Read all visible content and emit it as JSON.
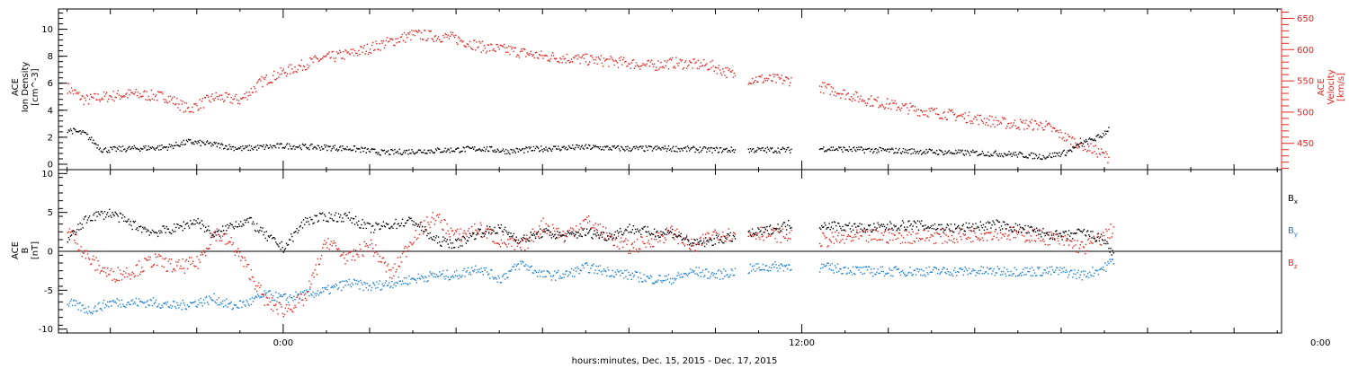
{
  "colors": {
    "black": "#000000",
    "red": "#e8231f",
    "blue": "#1a7fd6",
    "frame": "#000000"
  },
  "x_caption": "hours:minutes, Dec. 15, 2015 - Dec. 17, 2015",
  "chart_data": [
    {
      "type": "scatter",
      "panel": "top",
      "x_unit": "hours relative to Dec. 16, 2015 00:00",
      "xlim": [
        -5.2,
        23.1
      ],
      "x_ticks": [
        {
          "value": 0,
          "label": "0:00"
        },
        {
          "value": 12,
          "label": "12:00"
        },
        {
          "value": 24,
          "label": "0:00"
        }
      ],
      "left_axis": {
        "label_lines": [
          "ACE",
          "Ion Density",
          "[cm^-3]"
        ],
        "ylim": [
          -0.4,
          11.5
        ],
        "ticks": [
          "0",
          "2",
          "4",
          "6",
          "8",
          "10"
        ]
      },
      "right_axis": {
        "label_lines": [
          "ACE",
          "Velocity",
          "[km/s]"
        ],
        "ylim": [
          408,
          665
        ],
        "ticks": [
          "450",
          "500",
          "550",
          "600",
          "650"
        ],
        "color": "#e8231f"
      },
      "series": [
        {
          "axis": "left",
          "color": "#000000",
          "x": [
            -5.0,
            -4.6,
            -4.2,
            -3.5,
            -2.7,
            -2.2,
            -1.6,
            -1.0,
            -0.5,
            0.0,
            0.8,
            1.6,
            2.3,
            3.0,
            3.9,
            4.6,
            5.2,
            6.0,
            7.0,
            7.9,
            8.5,
            9.0,
            9.9,
            10.6,
            11.7,
            12.5,
            13.5,
            14.6,
            15.6,
            16.8,
            17.6,
            18.1,
            18.5,
            18.9,
            19.1
          ],
          "y": [
            2.6,
            2.3,
            1.1,
            1.2,
            1.3,
            1.7,
            1.5,
            1.2,
            1.3,
            1.4,
            1.3,
            1.2,
            0.9,
            1.0,
            1.1,
            1.2,
            1.0,
            1.2,
            1.3,
            1.2,
            1.2,
            1.2,
            1.1,
            1.1,
            1.1,
            1.2,
            1.1,
            1.0,
            0.9,
            0.8,
            0.6,
            0.9,
            1.6,
            2.1,
            2.7
          ]
        },
        {
          "axis": "right",
          "color": "#e8231f",
          "x": [
            -5.0,
            -4.6,
            -4.2,
            -3.5,
            -2.7,
            -2.2,
            -1.6,
            -1.0,
            -0.5,
            0.0,
            0.8,
            1.6,
            2.3,
            3.0,
            3.9,
            4.6,
            5.2,
            6.0,
            7.0,
            7.9,
            8.5,
            9.0,
            9.9,
            10.6,
            11.7,
            12.5,
            13.5,
            14.6,
            15.6,
            16.8,
            17.6,
            18.1,
            18.5,
            18.9,
            19.1
          ],
          "y": [
            540,
            520,
            525,
            530,
            525,
            505,
            525,
            520,
            550,
            565,
            585,
            595,
            610,
            625,
            620,
            605,
            600,
            590,
            585,
            580,
            575,
            580,
            575,
            555,
            552,
            540,
            520,
            505,
            495,
            482,
            480,
            460,
            448,
            435,
            428
          ]
        }
      ]
    },
    {
      "type": "line",
      "panel": "bottom",
      "x_unit": "hours relative to Dec. 16, 2015 00:00",
      "xlim": [
        -5.2,
        23.1
      ],
      "left_axis": {
        "label_lines": [
          "ACE",
          "B",
          "[nT]"
        ],
        "ylim": [
          -10.5,
          10.5
        ],
        "ticks": [
          "-10",
          "-5",
          "0",
          "5",
          "10"
        ]
      },
      "zero_line": true,
      "legend": [
        {
          "main": "B",
          "sub": "x",
          "color": "#000000"
        },
        {
          "main": "B",
          "sub": "y",
          "color": "#1a7fd6"
        },
        {
          "main": "B",
          "sub": "z",
          "color": "#e8231f"
        }
      ],
      "series": [
        {
          "name": "Bx",
          "color": "#000000",
          "x": [
            -5.0,
            -4.5,
            -4.0,
            -3.5,
            -3.0,
            -2.5,
            -2.0,
            -1.6,
            -1.2,
            -0.8,
            -0.4,
            0.0,
            0.5,
            1.0,
            1.5,
            2.0,
            2.5,
            3.0,
            3.5,
            4.0,
            4.5,
            5.0,
            5.5,
            6.0,
            6.5,
            7.0,
            7.5,
            8.0,
            8.5,
            9.0,
            9.5,
            10.0,
            10.5,
            11.0,
            11.7,
            12.5,
            13.5,
            14.5,
            15.5,
            16.5,
            17.5,
            18.0,
            18.5,
            19.0,
            19.2
          ],
          "y": [
            1.5,
            4.5,
            5.0,
            3.5,
            2.5,
            3.0,
            4.0,
            2.0,
            3.5,
            4.0,
            2.0,
            0.5,
            4.0,
            4.5,
            4.5,
            3.0,
            3.5,
            4.0,
            1.5,
            1.0,
            2.5,
            3.0,
            1.5,
            2.5,
            2.0,
            2.5,
            2.0,
            3.0,
            2.5,
            2.5,
            1.0,
            1.5,
            2.0,
            2.5,
            3.5,
            3.5,
            3.0,
            3.5,
            3.0,
            3.5,
            2.5,
            2.0,
            2.5,
            1.5,
            -0.5
          ]
        },
        {
          "name": "By",
          "color": "#1a7fd6",
          "x": [
            -5.0,
            -4.5,
            -4.0,
            -3.5,
            -3.0,
            -2.5,
            -2.0,
            -1.6,
            -1.2,
            -0.8,
            -0.4,
            0.0,
            0.5,
            1.0,
            1.5,
            2.0,
            2.5,
            3.0,
            3.5,
            4.0,
            4.5,
            5.0,
            5.5,
            6.0,
            6.5,
            7.0,
            7.5,
            8.0,
            8.5,
            9.0,
            9.5,
            10.0,
            10.5,
            11.0,
            11.7,
            12.5,
            13.5,
            14.5,
            15.5,
            16.5,
            17.5,
            18.0,
            18.5,
            19.0,
            19.2
          ],
          "y": [
            -6.5,
            -7.5,
            -6.5,
            -6.5,
            -6.5,
            -7.0,
            -6.5,
            -6.0,
            -7.0,
            -6.5,
            -5.5,
            -6.0,
            -5.5,
            -5.0,
            -4.0,
            -4.5,
            -4.0,
            -3.5,
            -3.0,
            -3.0,
            -2.0,
            -3.5,
            -1.5,
            -3.0,
            -3.0,
            -2.0,
            -2.5,
            -3.0,
            -3.5,
            -3.5,
            -2.5,
            -3.0,
            -2.5,
            -2.0,
            -1.8,
            -2.0,
            -2.5,
            -2.5,
            -2.5,
            -2.5,
            -2.5,
            -2.5,
            -3.0,
            -2.0,
            -1.0
          ]
        },
        {
          "name": "Bz",
          "color": "#e8231f",
          "x": [
            -5.0,
            -4.5,
            -4.0,
            -3.5,
            -3.0,
            -2.5,
            -2.0,
            -1.6,
            -1.2,
            -0.8,
            -0.4,
            0.0,
            0.5,
            1.0,
            1.5,
            2.0,
            2.5,
            3.0,
            3.5,
            4.0,
            4.5,
            5.0,
            5.5,
            6.0,
            6.5,
            7.0,
            7.5,
            8.0,
            8.5,
            9.0,
            9.5,
            10.0,
            10.5,
            11.0,
            11.7,
            12.5,
            13.5,
            14.5,
            15.5,
            16.5,
            17.5,
            18.0,
            18.5,
            19.0,
            19.2
          ],
          "y": [
            3.0,
            -1.0,
            -3.0,
            -2.5,
            -1.0,
            -2.0,
            -1.5,
            2.5,
            1.0,
            -2.5,
            -6.5,
            -7.5,
            -6.0,
            1.5,
            -1.0,
            1.0,
            -3.0,
            2.0,
            4.5,
            2.0,
            3.0,
            1.5,
            0.5,
            3.5,
            2.0,
            4.0,
            2.0,
            0.5,
            1.5,
            2.5,
            0.5,
            2.5,
            2.0,
            2.5,
            2.0,
            1.5,
            2.0,
            2.0,
            2.0,
            2.5,
            2.0,
            1.5,
            0.5,
            2.0,
            3.0
          ]
        }
      ]
    }
  ]
}
